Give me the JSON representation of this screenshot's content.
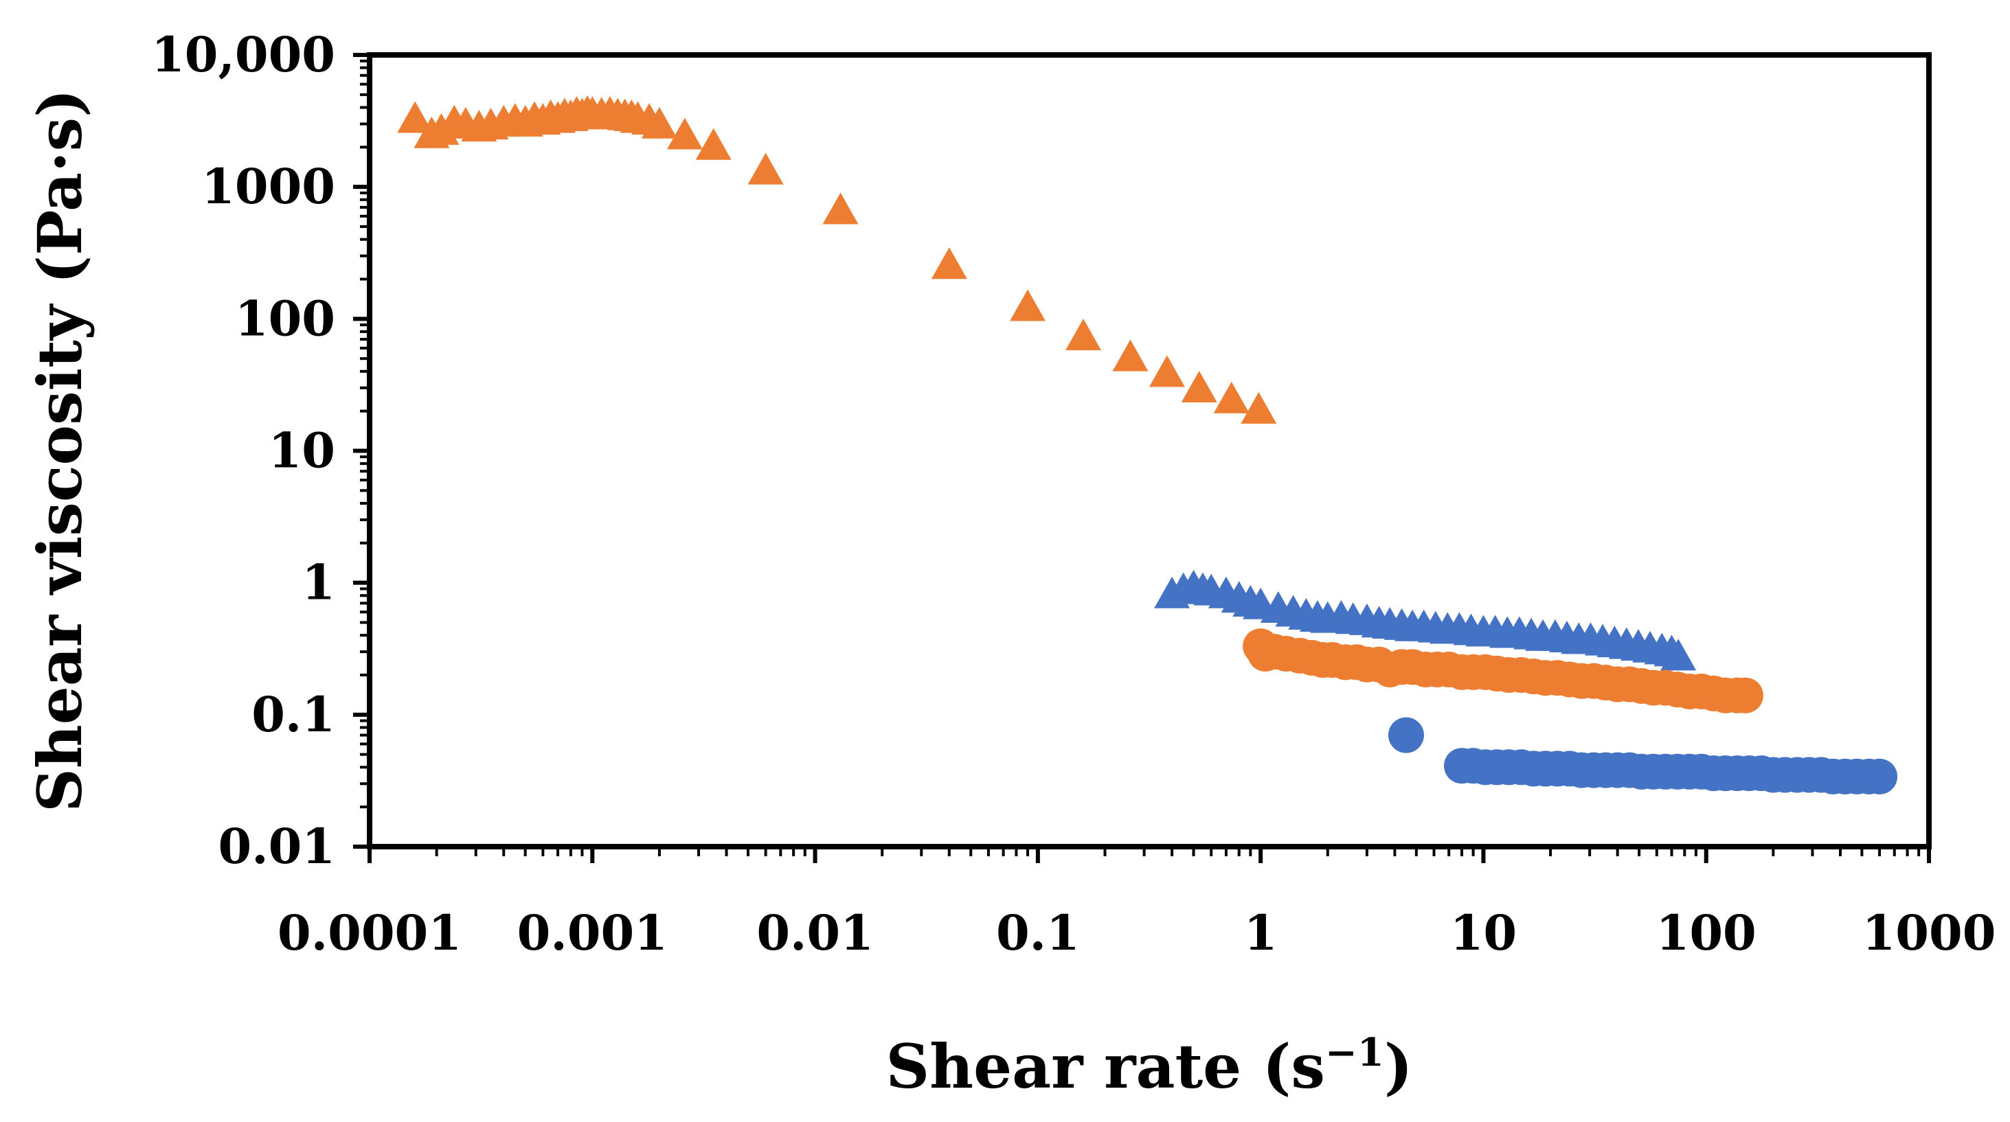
{
  "chart_data": {
    "type": "scatter",
    "title": "",
    "xlabel": "Shear rate (s",
    "xlabel_sup": "−1",
    "xlabel_close": ")",
    "ylabel": "Shear viscosity (Pa·s)",
    "x_scale": "log",
    "y_scale": "log",
    "xlim": [
      0.0001,
      1000
    ],
    "ylim": [
      0.01,
      10000
    ],
    "x_ticks": [
      {
        "value": 0.0001,
        "label": "0.0001"
      },
      {
        "value": 0.001,
        "label": "0.001"
      },
      {
        "value": 0.01,
        "label": "0.01"
      },
      {
        "value": 0.1,
        "label": "0.1"
      },
      {
        "value": 1,
        "label": "1"
      },
      {
        "value": 10,
        "label": "10"
      },
      {
        "value": 100,
        "label": "100"
      },
      {
        "value": 1000,
        "label": "1000"
      }
    ],
    "y_ticks": [
      {
        "value": 0.01,
        "label": "0.01"
      },
      {
        "value": 0.1,
        "label": "0.1"
      },
      {
        "value": 1,
        "label": "1"
      },
      {
        "value": 10,
        "label": "10"
      },
      {
        "value": 100,
        "label": "100"
      },
      {
        "value": 1000,
        "label": "1000"
      },
      {
        "value": 10000,
        "label": "10,000"
      }
    ],
    "grid": false,
    "legend": "none",
    "series": [
      {
        "marker": "triangle",
        "color": "#ED7D31",
        "points": [
          [
            0.00016,
            3200
          ],
          [
            0.00019,
            2450
          ],
          [
            0.00021,
            2600
          ],
          [
            0.00024,
            3000
          ],
          [
            0.00027,
            2900
          ],
          [
            0.00031,
            2750
          ],
          [
            0.00035,
            2850
          ],
          [
            0.0004,
            3000
          ],
          [
            0.00045,
            3100
          ],
          [
            0.0005,
            3000
          ],
          [
            0.00055,
            3200
          ],
          [
            0.0006,
            3100
          ],
          [
            0.00065,
            3300
          ],
          [
            0.0007,
            3200
          ],
          [
            0.00075,
            3400
          ],
          [
            0.0008,
            3300
          ],
          [
            0.00085,
            3500
          ],
          [
            0.0009,
            3400
          ],
          [
            0.00095,
            3550
          ],
          [
            0.001,
            3500
          ],
          [
            0.0011,
            3450
          ],
          [
            0.0012,
            3500
          ],
          [
            0.0013,
            3400
          ],
          [
            0.0014,
            3350
          ],
          [
            0.0015,
            3300
          ],
          [
            0.0016,
            3200
          ],
          [
            0.0018,
            3100
          ],
          [
            0.002,
            2900
          ],
          [
            0.0026,
            2400
          ],
          [
            0.0035,
            2000
          ],
          [
            0.006,
            1300
          ],
          [
            0.013,
            650
          ],
          [
            0.04,
            250
          ],
          [
            0.09,
            120
          ],
          [
            0.16,
            72
          ],
          [
            0.26,
            50
          ],
          [
            0.38,
            38
          ],
          [
            0.53,
            29
          ],
          [
            0.74,
            24
          ],
          [
            0.98,
            20
          ]
        ]
      },
      {
        "marker": "triangle",
        "color": "#4472C4",
        "points": [
          [
            0.4,
            0.8
          ],
          [
            0.45,
            0.86
          ],
          [
            0.5,
            0.9
          ],
          [
            0.55,
            0.86
          ],
          [
            0.6,
            0.84
          ],
          [
            0.7,
            0.8
          ],
          [
            0.8,
            0.74
          ],
          [
            0.9,
            0.69
          ],
          [
            1.0,
            0.66
          ],
          [
            1.2,
            0.62
          ],
          [
            1.4,
            0.58
          ],
          [
            1.6,
            0.55
          ],
          [
            1.8,
            0.53
          ],
          [
            2.0,
            0.52
          ],
          [
            2.3,
            0.53
          ],
          [
            2.6,
            0.51
          ],
          [
            3.0,
            0.5
          ],
          [
            3.4,
            0.48
          ],
          [
            3.8,
            0.47
          ],
          [
            4.3,
            0.46
          ],
          [
            4.8,
            0.45
          ],
          [
            5.4,
            0.45
          ],
          [
            6.1,
            0.44
          ],
          [
            6.9,
            0.43
          ],
          [
            7.8,
            0.43
          ],
          [
            8.8,
            0.42
          ],
          [
            10,
            0.41
          ],
          [
            11.3,
            0.41
          ],
          [
            12.8,
            0.4
          ],
          [
            14.5,
            0.4
          ],
          [
            16.4,
            0.39
          ],
          [
            18.5,
            0.38
          ],
          [
            21,
            0.38
          ],
          [
            23.7,
            0.37
          ],
          [
            26.8,
            0.36
          ],
          [
            30.3,
            0.36
          ],
          [
            34.3,
            0.35
          ],
          [
            38.8,
            0.34
          ],
          [
            43.9,
            0.33
          ],
          [
            49.6,
            0.32
          ],
          [
            56,
            0.31
          ],
          [
            63.3,
            0.3
          ],
          [
            70,
            0.29
          ],
          [
            75,
            0.27
          ]
        ]
      },
      {
        "marker": "circle",
        "color": "#ED7D31",
        "points": [
          [
            1.0,
            0.33
          ],
          [
            1.05,
            0.29
          ],
          [
            1.15,
            0.3
          ],
          [
            1.3,
            0.29
          ],
          [
            1.5,
            0.28
          ],
          [
            1.7,
            0.27
          ],
          [
            1.9,
            0.26
          ],
          [
            2.1,
            0.26
          ],
          [
            2.4,
            0.25
          ],
          [
            2.7,
            0.25
          ],
          [
            3.0,
            0.24
          ],
          [
            3.4,
            0.24
          ],
          [
            3.8,
            0.22
          ],
          [
            4.3,
            0.23
          ],
          [
            4.8,
            0.23
          ],
          [
            5.5,
            0.22
          ],
          [
            6.2,
            0.22
          ],
          [
            7.0,
            0.22
          ],
          [
            8.0,
            0.21
          ],
          [
            9.0,
            0.21
          ],
          [
            10.2,
            0.21
          ],
          [
            11.5,
            0.205
          ],
          [
            13,
            0.2
          ],
          [
            14.8,
            0.2
          ],
          [
            16.8,
            0.195
          ],
          [
            19,
            0.19
          ],
          [
            21.5,
            0.19
          ],
          [
            24.4,
            0.185
          ],
          [
            27.6,
            0.18
          ],
          [
            31.3,
            0.18
          ],
          [
            35.4,
            0.175
          ],
          [
            40,
            0.17
          ],
          [
            45.3,
            0.17
          ],
          [
            51.3,
            0.165
          ],
          [
            58,
            0.16
          ],
          [
            65.7,
            0.16
          ],
          [
            74.4,
            0.155
          ],
          [
            84.2,
            0.15
          ],
          [
            95.3,
            0.15
          ],
          [
            108,
            0.145
          ],
          [
            122,
            0.14
          ],
          [
            138,
            0.14
          ],
          [
            150,
            0.14
          ]
        ]
      },
      {
        "marker": "circle",
        "color": "#4472C4",
        "points": [
          [
            4.5,
            0.07
          ],
          [
            8,
            0.041
          ],
          [
            9,
            0.041
          ],
          [
            10.2,
            0.04
          ],
          [
            11.5,
            0.04
          ],
          [
            13,
            0.04
          ],
          [
            14.8,
            0.04
          ],
          [
            16.8,
            0.039
          ],
          [
            19,
            0.039
          ],
          [
            21.5,
            0.039
          ],
          [
            24.4,
            0.039
          ],
          [
            27.6,
            0.038
          ],
          [
            31.3,
            0.038
          ],
          [
            35.4,
            0.038
          ],
          [
            40,
            0.038
          ],
          [
            45.3,
            0.038
          ],
          [
            51.3,
            0.037
          ],
          [
            58,
            0.037
          ],
          [
            65.7,
            0.037
          ],
          [
            74.4,
            0.037
          ],
          [
            84.2,
            0.037
          ],
          [
            95.3,
            0.037
          ],
          [
            108,
            0.036
          ],
          [
            122,
            0.036
          ],
          [
            138,
            0.036
          ],
          [
            156,
            0.036
          ],
          [
            177,
            0.036
          ],
          [
            200,
            0.035
          ],
          [
            226,
            0.035
          ],
          [
            256,
            0.035
          ],
          [
            290,
            0.035
          ],
          [
            328,
            0.035
          ],
          [
            371,
            0.034
          ],
          [
            420,
            0.034
          ],
          [
            475,
            0.034
          ],
          [
            538,
            0.034
          ],
          [
            600,
            0.034
          ]
        ]
      }
    ]
  }
}
